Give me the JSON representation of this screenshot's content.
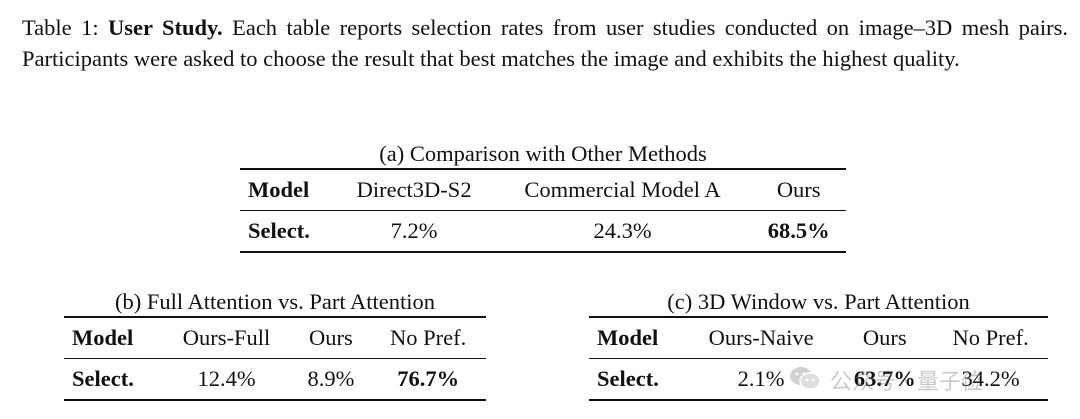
{
  "caption": {
    "prefix": "Table 1: ",
    "title": "User Study.",
    "text": " Each table reports selection rates from user studies conducted on image–3D mesh pairs. Participants were asked to choose the result that best matches the image and exhibits the highest quality."
  },
  "table_a": {
    "title": "(a) Comparison with Other Methods",
    "headers": [
      "Model",
      "Direct3D-S2",
      "Commercial Model A",
      "Ours"
    ],
    "row": [
      "Select.",
      "7.2%",
      "24.3%",
      "68.5%"
    ]
  },
  "table_b": {
    "title": "(b) Full Attention vs. Part Attention",
    "headers": [
      "Model",
      "Ours-Full",
      "Ours",
      "No Pref."
    ],
    "row": [
      "Select.",
      "12.4%",
      "8.9%",
      "76.7%"
    ]
  },
  "table_c": {
    "title": "(c) 3D Window vs. Part Attention",
    "headers": [
      "Model",
      "Ours-Naive",
      "Ours",
      "No Pref."
    ],
    "row": [
      "Select.",
      "2.1%",
      "63.7%",
      "34.2%"
    ]
  },
  "watermark": {
    "text": "公众号 · 量子位",
    "icon": "wechat-icon"
  }
}
